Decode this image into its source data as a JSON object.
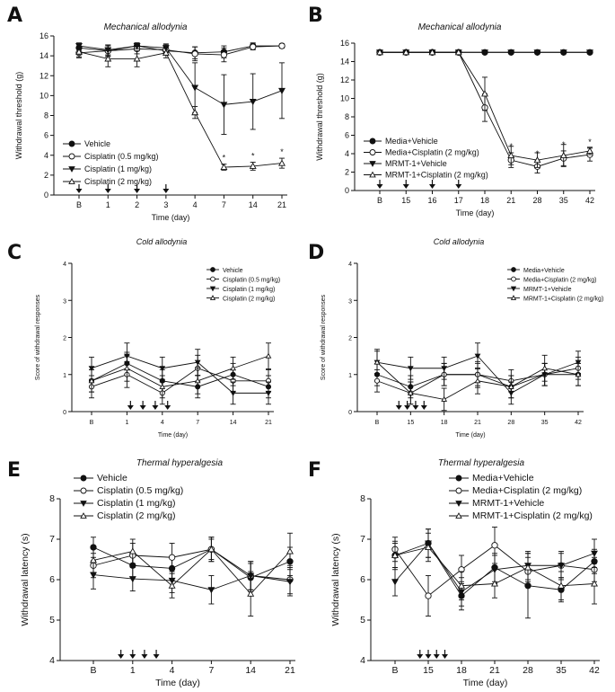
{
  "chart_data": [
    {
      "panel": "A",
      "type": "line",
      "title": "Mechanical allodynia",
      "xlabel": "Time (day)",
      "ylabel": "Withdrawal threshold (g)",
      "categories": [
        "B",
        "1",
        "2",
        "3",
        "4",
        "7",
        "14",
        "21"
      ],
      "ylim": [
        0,
        16
      ],
      "yticks": [
        0,
        2,
        4,
        6,
        8,
        10,
        12,
        14,
        16
      ],
      "arrows_at": [
        "B",
        "1",
        "2",
        "3"
      ],
      "legend_position": "bottom-left",
      "series": [
        {
          "name": "Vehicle",
          "marker": "circle-filled",
          "values": [
            14.8,
            14.5,
            15.0,
            14.5,
            14.3,
            14.4,
            15.0,
            15.0
          ],
          "errors": [
            0.4,
            0.5,
            0.3,
            0.4,
            0.6,
            0.6,
            0.3,
            0.2
          ]
        },
        {
          "name": "Cisplatin (0.5 mg/kg)",
          "marker": "circle-open",
          "values": [
            14.3,
            14.5,
            14.7,
            14.6,
            14.2,
            14.1,
            14.9,
            15.0
          ],
          "errors": [
            0.5,
            0.6,
            0.5,
            0.5,
            0.7,
            0.7,
            0.3,
            0.2
          ]
        },
        {
          "name": "Cisplatin (1 mg/kg)",
          "marker": "triangle-down-filled",
          "values": [
            15.0,
            14.6,
            15.0,
            14.8,
            10.8,
            9.1,
            9.4,
            10.5
          ],
          "errors": [
            0.3,
            0.5,
            0.3,
            0.4,
            2.5,
            3.0,
            2.8,
            2.8
          ]
        },
        {
          "name": "Cisplatin (2 mg/kg)",
          "marker": "triangle-up-open",
          "values": [
            14.4,
            13.7,
            13.7,
            14.3,
            8.3,
            2.8,
            2.9,
            3.2
          ],
          "errors": [
            0.5,
            0.8,
            0.8,
            0.5,
            0.6,
            0.3,
            0.4,
            0.5
          ]
        }
      ],
      "annotations": [
        {
          "x": "7",
          "text": "*"
        },
        {
          "x": "14",
          "text": "*"
        },
        {
          "x": "21",
          "text": "*"
        }
      ]
    },
    {
      "panel": "B",
      "type": "line",
      "title": "Mechanical allodynia",
      "xlabel": "Time (day)",
      "ylabel": "Withdrawal threshold (g)",
      "categories": [
        "B",
        "15",
        "16",
        "17",
        "18",
        "21",
        "28",
        "35",
        "42"
      ],
      "ylim": [
        0,
        16
      ],
      "yticks": [
        0,
        2,
        4,
        6,
        8,
        10,
        12,
        14,
        16
      ],
      "arrows_at": [
        "B",
        "15",
        "16",
        "17"
      ],
      "legend_position": "bottom-left",
      "series": [
        {
          "name": "Media+Vehicle",
          "marker": "circle-filled",
          "values": [
            15,
            15,
            15,
            15,
            15,
            15,
            15,
            15,
            15
          ],
          "errors": [
            0,
            0,
            0,
            0,
            0,
            0,
            0,
            0,
            0
          ]
        },
        {
          "name": "Media+Cisplatin (2 mg/kg)",
          "marker": "circle-open",
          "values": [
            15,
            15,
            15,
            15,
            9.0,
            3.3,
            2.6,
            3.5,
            3.9
          ],
          "errors": [
            0,
            0,
            0,
            0,
            1.5,
            0.8,
            0.7,
            0.8,
            0.7
          ]
        },
        {
          "name": "MRMT-1+Vehicle",
          "marker": "triangle-down-filled",
          "values": [
            15,
            15,
            15,
            15,
            15,
            15,
            15,
            15,
            15
          ],
          "errors": [
            0,
            0,
            0,
            0,
            0,
            0,
            0,
            0,
            0
          ]
        },
        {
          "name": "MRMT-1+Cisplatin (2 mg/kg)",
          "marker": "triangle-up-open",
          "values": [
            15,
            15,
            15,
            15,
            10.5,
            3.8,
            3.3,
            3.8,
            4.3
          ],
          "errors": [
            0,
            0,
            0,
            0,
            1.8,
            1.0,
            0.8,
            1.2,
            0.4
          ]
        }
      ],
      "annotations": [
        {
          "x": "21",
          "text": "*"
        },
        {
          "x": "28",
          "text": "*"
        },
        {
          "x": "35",
          "text": "*"
        },
        {
          "x": "42",
          "text": "*"
        }
      ]
    },
    {
      "panel": "C",
      "type": "line",
      "title": "Cold allodynia",
      "xlabel": "Time (day)",
      "ylabel": "Score of withdrawal responses",
      "categories": [
        "B",
        "1",
        "4",
        "7",
        "14",
        "21"
      ],
      "ylim": [
        0,
        4
      ],
      "yticks": [
        0,
        1,
        2,
        3,
        4
      ],
      "arrows_at_positions": [
        1.1,
        1.45,
        1.8,
        2.15
      ],
      "legend_position": "top-right",
      "series": [
        {
          "name": "Vehicle",
          "marker": "circle-filled",
          "values": [
            0.83,
            1.3,
            0.83,
            0.67,
            1.0,
            0.67
          ],
          "errors": [
            0.3,
            0.3,
            0.3,
            0.3,
            0.3,
            0.3
          ]
        },
        {
          "name": "Cisplatin (0.5 mg/kg)",
          "marker": "circle-open",
          "values": [
            0.67,
            1.0,
            0.5,
            1.17,
            0.83,
            0.83
          ],
          "errors": [
            0.3,
            0.35,
            0.3,
            0.35,
            0.3,
            0.3
          ]
        },
        {
          "name": "Cisplatin (1 mg/kg)",
          "marker": "triangle-down-filled",
          "values": [
            1.17,
            1.5,
            1.17,
            1.33,
            0.5,
            0.5
          ],
          "errors": [
            0.3,
            0.35,
            0.3,
            0.35,
            0.3,
            0.3
          ]
        },
        {
          "name": "Cisplatin (2 mg/kg)",
          "marker": "triangle-up-open",
          "values": [
            0.83,
            1.17,
            0.67,
            0.83,
            1.17,
            1.5
          ],
          "errors": [
            0.3,
            0.35,
            0.3,
            0.35,
            0.3,
            0.35
          ]
        }
      ]
    },
    {
      "panel": "D",
      "type": "line",
      "title": "Cold allodynia",
      "xlabel": "Time (day)",
      "ylabel": "Score of withdrawal responses",
      "categories": [
        "B",
        "15",
        "18",
        "21",
        "28",
        "35",
        "42"
      ],
      "ylim": [
        0,
        4
      ],
      "yticks": [
        0,
        1,
        2,
        3,
        4
      ],
      "arrows_at_positions": [
        0.65,
        0.9,
        1.15,
        1.4
      ],
      "legend_position": "top-right",
      "series": [
        {
          "name": "Media+Vehicle",
          "marker": "circle-filled",
          "values": [
            1.0,
            0.67,
            1.0,
            1.0,
            0.67,
            1.0,
            1.0
          ],
          "errors": [
            0.3,
            0.3,
            0.3,
            0.3,
            0.3,
            0.3,
            0.3
          ]
        },
        {
          "name": "Media+Cisplatin (2 mg/kg)",
          "marker": "circle-open",
          "values": [
            0.83,
            0.5,
            1.0,
            1.0,
            0.83,
            1.0,
            1.17
          ],
          "errors": [
            0.3,
            0.3,
            0.3,
            0.35,
            0.3,
            0.3,
            0.3
          ]
        },
        {
          "name": "MRMT-1+Vehicle",
          "marker": "triangle-down-filled",
          "values": [
            1.33,
            1.17,
            1.17,
            1.5,
            0.5,
            1.0,
            1.33
          ],
          "errors": [
            0.3,
            0.3,
            0.3,
            0.35,
            0.3,
            0.3,
            0.3
          ]
        },
        {
          "name": "MRMT-1+Cisplatin (2 mg/kg)",
          "marker": "triangle-up-open",
          "values": [
            1.33,
            0.5,
            0.33,
            0.83,
            0.67,
            1.17,
            1.0
          ],
          "errors": [
            0.35,
            0.3,
            0.3,
            0.35,
            0.3,
            0.35,
            0.3
          ]
        }
      ]
    },
    {
      "panel": "E",
      "type": "line",
      "title": "Thermal hyperalgesia",
      "xlabel": "Time (day)",
      "ylabel": "Withdrawal latency (s)",
      "categories": [
        "B",
        "1",
        "4",
        "7",
        "14",
        "21"
      ],
      "ylim": [
        4,
        8
      ],
      "yticks": [
        4,
        5,
        6,
        7,
        8
      ],
      "arrows_at_positions": [
        0.7,
        1.0,
        1.3,
        1.6
      ],
      "legend_position": "top-left",
      "series": [
        {
          "name": "Vehicle",
          "marker": "circle-filled",
          "values": [
            6.8,
            6.35,
            6.28,
            6.75,
            6.05,
            6.45
          ],
          "errors": [
            0.25,
            0.3,
            0.3,
            0.25,
            0.35,
            0.35
          ]
        },
        {
          "name": "Cisplatin (0.5 mg/kg)",
          "marker": "circle-open",
          "values": [
            6.35,
            6.6,
            6.55,
            6.75,
            6.1,
            6.0
          ],
          "errors": [
            0.3,
            0.3,
            0.35,
            0.3,
            0.35,
            0.35
          ]
        },
        {
          "name": "Cisplatin (1 mg/kg)",
          "marker": "triangle-down-filled",
          "values": [
            6.12,
            6.02,
            5.98,
            5.75,
            6.1,
            5.95
          ],
          "errors": [
            0.35,
            0.3,
            0.3,
            0.35,
            0.35,
            0.35
          ]
        },
        {
          "name": "Cisplatin (2 mg/kg)",
          "marker": "triangle-up-open",
          "values": [
            6.48,
            6.7,
            5.85,
            6.75,
            5.65,
            6.7
          ],
          "errors": [
            0.3,
            0.3,
            0.3,
            0.3,
            0.55,
            0.45
          ]
        }
      ]
    },
    {
      "panel": "F",
      "type": "line",
      "title": "Thermal hyperalgesia",
      "xlabel": "Time (day)",
      "ylabel": "Withdrawal latency (s)",
      "categories": [
        "B",
        "15",
        "18",
        "21",
        "28",
        "35",
        "42"
      ],
      "ylim": [
        4,
        8
      ],
      "yticks": [
        4,
        5,
        6,
        7,
        8
      ],
      "arrows_at_positions": [
        0.75,
        1.0,
        1.25,
        1.5
      ],
      "legend_position": "top-right",
      "series": [
        {
          "name": "Media+Vehicle",
          "marker": "circle-filled",
          "values": [
            6.6,
            6.9,
            5.6,
            6.3,
            5.85,
            5.75,
            6.45
          ],
          "errors": [
            0.3,
            0.35,
            0.35,
            0.35,
            0.8,
            0.3,
            0.3
          ]
        },
        {
          "name": "Media+Cisplatin (2 mg/kg)",
          "marker": "circle-open",
          "values": [
            6.75,
            5.6,
            6.25,
            6.85,
            6.2,
            6.35,
            6.25
          ],
          "errors": [
            0.3,
            0.5,
            0.35,
            0.45,
            0.35,
            0.3,
            0.3
          ]
        },
        {
          "name": "MRMT-1+Vehicle",
          "marker": "triangle-down-filled",
          "values": [
            5.95,
            6.9,
            5.7,
            6.25,
            6.35,
            6.35,
            6.65
          ],
          "errors": [
            0.35,
            0.35,
            0.35,
            0.35,
            0.35,
            0.35,
            0.35
          ]
        },
        {
          "name": "MRMT-1+Cisplatin (2 mg/kg)",
          "marker": "triangle-up-open",
          "values": [
            6.6,
            6.8,
            5.85,
            5.9,
            6.3,
            5.85,
            5.9
          ],
          "errors": [
            0.35,
            0.35,
            0.35,
            0.35,
            0.35,
            0.35,
            0.5
          ]
        }
      ]
    }
  ]
}
